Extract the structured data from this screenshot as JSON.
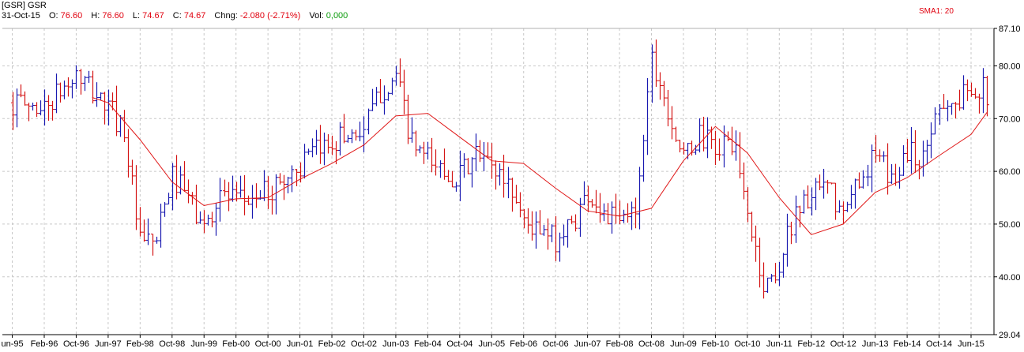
{
  "header": {
    "symbol": "[GSR] GSR",
    "date": "31-Oct-15",
    "open_label": "O:",
    "open": "76.60",
    "high_label": "H:",
    "high": "76.60",
    "low_label": "L:",
    "low": "74.67",
    "close_label": "C:",
    "close": "74.67",
    "change_label": "Chng:",
    "change": "-2.080 (-2.71%)",
    "volume_label": "Vol:",
    "volume": "0,000"
  },
  "indicator": {
    "label": "SMA1: 20"
  },
  "colors": {
    "up": "#1a1ab0",
    "down": "#d41414",
    "sma": "#e01818",
    "grid": "#c8c8c8"
  },
  "chart_data": {
    "type": "ohlc",
    "ylim": [
      29.04,
      87.1
    ],
    "y_ticks": [
      "87.10",
      "80.00",
      "70.00",
      "60.00",
      "50.00",
      "40.00",
      "29.04"
    ],
    "x_ticks": [
      "un-95",
      "Feb-96",
      "Oct-96",
      "Jun-97",
      "Feb-98",
      "Oct-98",
      "Jun-99",
      "Feb-00",
      "Oct-00",
      "Jun-01",
      "Feb-02",
      "Oct-02",
      "Jun-03",
      "Feb-04",
      "Oct-04",
      "Jun-05",
      "Feb-06",
      "Oct-06",
      "Jun-07",
      "Feb-08",
      "Oct-08",
      "Jun-09",
      "Feb-10",
      "Oct-10",
      "Jun-11",
      "Feb-12",
      "Oct-12",
      "Jun-13",
      "Feb-14",
      "Oct-14",
      "Jun-15"
    ],
    "close_series": {
      "name": "GSR",
      "x": [
        "Jun-95",
        "Feb-96",
        "Oct-96",
        "Jun-97",
        "Oct-97",
        "Feb-98",
        "Jun-98",
        "Oct-98",
        "Feb-99",
        "Jun-99",
        "Oct-99",
        "Feb-00",
        "Oct-00",
        "Jun-01",
        "Feb-02",
        "Oct-02",
        "Feb-03",
        "Jun-03",
        "Oct-03",
        "Feb-04",
        "Jun-04",
        "Oct-04",
        "Feb-05",
        "Jun-05",
        "Oct-05",
        "Feb-06",
        "Jun-06",
        "Oct-06",
        "Feb-07",
        "Jun-07",
        "Oct-07",
        "Feb-08",
        "Jun-08",
        "Oct-08",
        "Feb-09",
        "Jun-09",
        "Oct-09",
        "Feb-10",
        "Jun-10",
        "Oct-10",
        "Feb-11",
        "Jun-11",
        "Oct-11",
        "Feb-12",
        "Jun-12",
        "Oct-12",
        "Feb-13",
        "Jun-13",
        "Oct-13",
        "Feb-14",
        "Jun-14",
        "Oct-14",
        "Feb-15",
        "Jun-15",
        "Oct-15"
      ],
      "close": [
        73,
        72,
        78,
        72,
        68,
        46,
        47,
        59,
        55,
        49,
        56,
        54,
        56,
        61,
        66,
        68,
        75,
        78,
        65,
        62,
        60,
        59,
        63,
        61,
        58,
        51,
        48,
        47,
        50,
        56,
        52,
        50,
        53,
        82,
        72,
        62,
        67,
        64,
        66,
        52,
        38,
        42,
        53,
        55,
        57,
        51,
        59,
        63,
        58,
        64,
        62,
        74,
        72,
        77,
        74.67
      ]
    },
    "sma": {
      "name": "SMA1: 20",
      "x": [
        "Feb-97",
        "Jun-97",
        "Feb-98",
        "Oct-98",
        "Jun-99",
        "Feb-00",
        "Oct-00",
        "Jun-01",
        "Feb-02",
        "Oct-02",
        "Jun-03",
        "Feb-04",
        "Oct-04",
        "Jun-05",
        "Feb-06",
        "Oct-06",
        "Jun-07",
        "Feb-08",
        "Oct-08",
        "Jun-09",
        "Feb-10",
        "Oct-10",
        "Jun-11",
        "Feb-12",
        "Oct-12",
        "Jun-13",
        "Feb-14",
        "Oct-14",
        "Jun-15",
        "Oct-15"
      ],
      "values": [
        74,
        73,
        66,
        58,
        53.5,
        54.8,
        55,
        58.5,
        61.5,
        65,
        70.5,
        71,
        66.5,
        62,
        61.5,
        56.8,
        52.5,
        51.5,
        53,
        62,
        68.5,
        63.5,
        55,
        48,
        50,
        56,
        58.8,
        63,
        67,
        71.2
      ]
    }
  }
}
